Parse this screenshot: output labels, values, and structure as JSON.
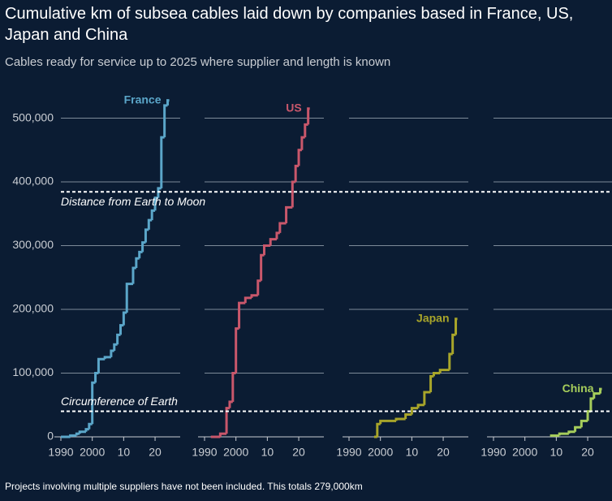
{
  "title": "Cumulative km of subsea cables laid down by companies based in France, US, Japan and China",
  "subtitle": "Cables ready for service up to 2025 where supplier and length is known",
  "note": "Projects involving multiple suppliers have not been included. This totals 279,000km",
  "annotations": [
    {
      "label": "Distance from Earth to Moon",
      "value": 384400
    },
    {
      "label": "Circumference of Earth",
      "value": 40075
    }
  ],
  "chart_data": [
    {
      "type": "line",
      "step": true,
      "xlim": [
        1990,
        2028
      ],
      "xticks": [
        1990,
        2000,
        {
          "value": 2010,
          "label": "10"
        },
        {
          "value": 2020,
          "label": "20"
        }
      ],
      "ylim": [
        0,
        530000
      ],
      "yticks": [
        0,
        {
          "value": 100000,
          "label": "100,000"
        },
        {
          "value": 200000,
          "label": "200,000"
        },
        {
          "value": 300000,
          "label": "300,000"
        },
        {
          "value": 400000,
          "label": "400,000"
        },
        {
          "value": 500000,
          "label": "500,000"
        }
      ],
      "grid": true,
      "series": [
        {
          "name": "France",
          "color": "#5ba6c9",
          "x": [
            1990,
            1993,
            1995,
            1996,
            1998,
            1999,
            2000,
            2001,
            2002,
            2004,
            2006,
            2007,
            2008,
            2009,
            2010,
            2011,
            2013,
            2014,
            2015,
            2016,
            2017,
            2018,
            2019,
            2020,
            2021,
            2022,
            2023,
            2024
          ],
          "values": [
            0,
            2000,
            5000,
            8000,
            12000,
            20000,
            85000,
            100000,
            122000,
            125000,
            135000,
            145000,
            160000,
            175000,
            195000,
            240000,
            265000,
            280000,
            290000,
            305000,
            325000,
            340000,
            355000,
            375000,
            390000,
            470000,
            520000,
            528000
          ]
        }
      ]
    },
    {
      "type": "line",
      "step": true,
      "xlim": [
        1990,
        2028
      ],
      "xticks": [
        1990,
        2000,
        {
          "value": 2010,
          "label": "10"
        },
        {
          "value": 2020,
          "label": "20"
        }
      ],
      "ylim": [
        0,
        530000
      ],
      "yticks": [
        0,
        100000,
        200000,
        300000,
        400000,
        500000
      ],
      "grid": true,
      "series": [
        {
          "name": "US",
          "color": "#c9576b",
          "x": [
            1992,
            1995,
            1997,
            1998,
            1999,
            2000,
            2001,
            2003,
            2005,
            2007,
            2008,
            2009,
            2011,
            2013,
            2014,
            2016,
            2018,
            2019,
            2020,
            2021,
            2022,
            2023
          ],
          "values": [
            0,
            5000,
            45000,
            55000,
            100000,
            170000,
            210000,
            218000,
            222000,
            245000,
            285000,
            300000,
            310000,
            320000,
            335000,
            360000,
            400000,
            425000,
            450000,
            470000,
            490000,
            515000
          ]
        }
      ]
    },
    {
      "type": "line",
      "step": true,
      "xlim": [
        1990,
        2028
      ],
      "xticks": [
        1990,
        2000,
        {
          "value": 2010,
          "label": "10"
        },
        {
          "value": 2020,
          "label": "20"
        }
      ],
      "ylim": [
        0,
        530000
      ],
      "yticks": [
        0,
        100000,
        200000,
        300000,
        400000,
        500000
      ],
      "grid": true,
      "series": [
        {
          "name": "Japan",
          "color": "#a8a52a",
          "x": [
            1998,
            1999,
            2000,
            2005,
            2008,
            2010,
            2012,
            2014,
            2016,
            2017,
            2019,
            2022,
            2023,
            2024
          ],
          "values": [
            0,
            20000,
            25000,
            28000,
            35000,
            45000,
            50000,
            70000,
            95000,
            100000,
            105000,
            130000,
            160000,
            185000
          ]
        }
      ]
    },
    {
      "type": "line",
      "step": true,
      "xlim": [
        1990,
        2028
      ],
      "xticks": [
        1990,
        2000,
        {
          "value": 2010,
          "label": "10"
        },
        {
          "value": 2020,
          "label": "20"
        }
      ],
      "ylim": [
        0,
        530000
      ],
      "yticks": [
        0,
        100000,
        200000,
        300000,
        400000,
        500000
      ],
      "grid": true,
      "series": [
        {
          "name": "China",
          "color": "#a6cd5b",
          "x": [
            2008,
            2011,
            2014,
            2016,
            2018,
            2020,
            2021,
            2022,
            2024
          ],
          "values": [
            2000,
            5000,
            8000,
            15000,
            25000,
            40000,
            60000,
            68000,
            75000
          ]
        }
      ]
    }
  ]
}
